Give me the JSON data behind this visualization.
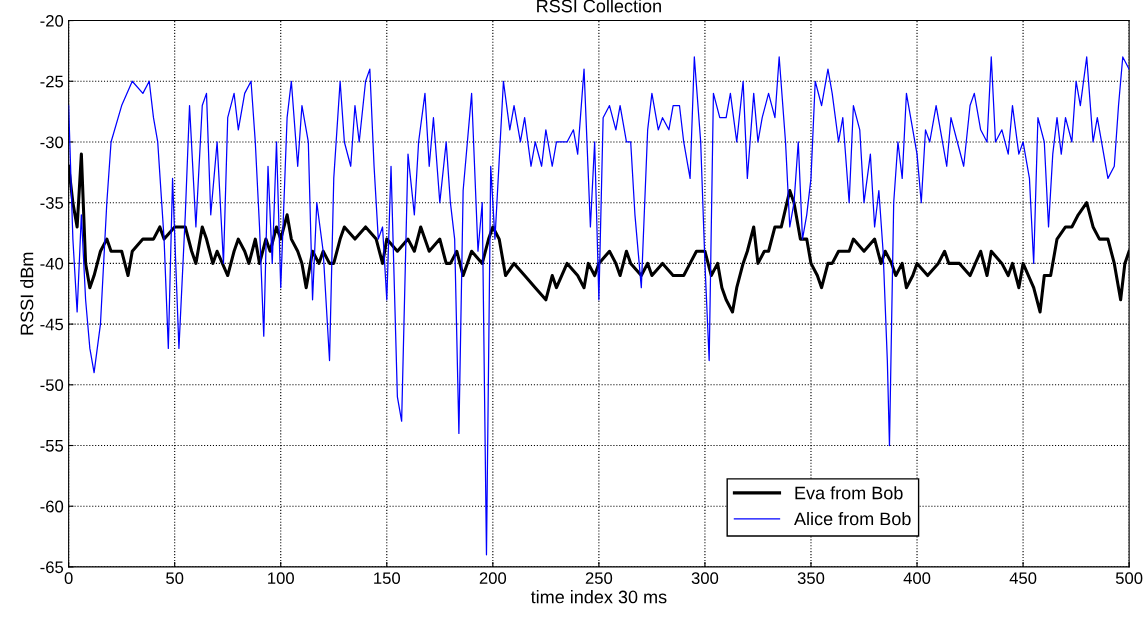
{
  "chart_data": {
    "type": "line",
    "title": "RSSI Collection",
    "xlabel": "time index 30 ms",
    "ylabel": "RSSI dBm",
    "xlim": [
      0,
      500
    ],
    "ylim": [
      -65,
      -20
    ],
    "xticks": [
      0,
      50,
      100,
      150,
      200,
      250,
      300,
      350,
      400,
      450,
      500
    ],
    "yticks": [
      -65,
      -60,
      -55,
      -50,
      -45,
      -40,
      -35,
      -30,
      -25,
      -20
    ],
    "grid": true,
    "legend": "bottom right",
    "line_style": "solid",
    "marker": "none",
    "series": [
      {
        "name": "Eva from Bob",
        "color": "#000000",
        "x": [
          0,
          2,
          4,
          6,
          8,
          10,
          12,
          15,
          18,
          20,
          25,
          28,
          30,
          35,
          38,
          40,
          43,
          45,
          50,
          55,
          58,
          60,
          63,
          65,
          68,
          70,
          75,
          78,
          80,
          83,
          85,
          88,
          90,
          93,
          95,
          98,
          100,
          103,
          105,
          108,
          110,
          112,
          115,
          118,
          120,
          123,
          125,
          128,
          130,
          135,
          140,
          145,
          148,
          150,
          155,
          160,
          163,
          166,
          170,
          175,
          178,
          180,
          183,
          186,
          188,
          190,
          195,
          198,
          200,
          203,
          206,
          210,
          215,
          220,
          225,
          228,
          230,
          235,
          240,
          243,
          245,
          248,
          250,
          255,
          258,
          260,
          263,
          265,
          270,
          273,
          275,
          280,
          285,
          290,
          293,
          296,
          300,
          303,
          306,
          308,
          310,
          313,
          315,
          318,
          320,
          323,
          325,
          328,
          330,
          333,
          336,
          340,
          342,
          345,
          348,
          350,
          353,
          355,
          358,
          360,
          363,
          368,
          370,
          375,
          380,
          383,
          385,
          388,
          390,
          393,
          395,
          398,
          400,
          405,
          410,
          413,
          415,
          420,
          425,
          430,
          433,
          435,
          440,
          443,
          445,
          448,
          450,
          455,
          458,
          460,
          463,
          466,
          470,
          473,
          476,
          480,
          483,
          486,
          490,
          493,
          495,
          496,
          498,
          500
        ],
        "values": [
          -32,
          -35,
          -37,
          -31,
          -40,
          -42,
          -41,
          -39,
          -38,
          -39,
          -39,
          -41,
          -39,
          -38,
          -38,
          -38,
          -37,
          -38,
          -37,
          -37,
          -39,
          -40,
          -37,
          -38,
          -40,
          -39,
          -41,
          -39,
          -38,
          -39,
          -40,
          -38,
          -40,
          -38,
          -39,
          -37,
          -38,
          -36,
          -38,
          -39,
          -40,
          -42,
          -39,
          -40,
          -39,
          -40,
          -40,
          -38,
          -37,
          -38,
          -37,
          -38,
          -40,
          -38,
          -39,
          -38,
          -39,
          -37,
          -39,
          -38,
          -40,
          -40,
          -39,
          -41,
          -40,
          -39,
          -40,
          -38,
          -37,
          -38,
          -41,
          -40,
          -41,
          -42,
          -43,
          -41,
          -42,
          -40,
          -41,
          -42,
          -40,
          -41,
          -40,
          -39,
          -40,
          -41,
          -39,
          -40,
          -41,
          -40,
          -41,
          -40,
          -41,
          -41,
          -40,
          -39,
          -39,
          -41,
          -40,
          -42,
          -43,
          -44,
          -42,
          -40,
          -39,
          -37,
          -40,
          -39,
          -39,
          -37,
          -37,
          -34,
          -35,
          -38,
          -38,
          -40,
          -41,
          -42,
          -40,
          -40,
          -39,
          -39,
          -38,
          -39,
          -38,
          -40,
          -39,
          -40,
          -41,
          -40,
          -42,
          -41,
          -40,
          -41,
          -40,
          -39,
          -40,
          -40,
          -41,
          -39,
          -41,
          -39,
          -40,
          -41,
          -40,
          -42,
          -40,
          -42,
          -44,
          -41,
          -41,
          -38,
          -37,
          -37,
          -36,
          -35,
          -37,
          -38,
          -38,
          -40,
          -42,
          -43,
          -40,
          -39
        ]
      },
      {
        "name": "Alice from Bob",
        "color": "#0000ff",
        "x": [
          0,
          2,
          4,
          6,
          8,
          10,
          12,
          15,
          18,
          20,
          25,
          30,
          35,
          38,
          40,
          42,
          45,
          47,
          49,
          52,
          55,
          57,
          60,
          63,
          65,
          67,
          70,
          73,
          75,
          78,
          80,
          83,
          86,
          88,
          90,
          92,
          94,
          96,
          98,
          100,
          103,
          105,
          108,
          110,
          113,
          115,
          117,
          120,
          123,
          125,
          128,
          130,
          133,
          135,
          137,
          140,
          142,
          144,
          146,
          148,
          150,
          152,
          155,
          157,
          160,
          163,
          165,
          168,
          170,
          172,
          175,
          178,
          180,
          182,
          184,
          186,
          188,
          190,
          193,
          195,
          197,
          199,
          201,
          205,
          208,
          210,
          213,
          215,
          218,
          220,
          223,
          225,
          228,
          230,
          235,
          238,
          240,
          243,
          246,
          248,
          250,
          252,
          255,
          258,
          260,
          263,
          265,
          267,
          270,
          273,
          275,
          278,
          280,
          283,
          285,
          288,
          290,
          293,
          295,
          298,
          300,
          302,
          304,
          307,
          310,
          312,
          315,
          318,
          320,
          323,
          325,
          327,
          330,
          333,
          335,
          338,
          340,
          342,
          344,
          346,
          348,
          350,
          352,
          355,
          358,
          360,
          363,
          365,
          368,
          370,
          373,
          375,
          378,
          380,
          382,
          384,
          386,
          387,
          389,
          391,
          393,
          395,
          397,
          400,
          402,
          404,
          406,
          409,
          412,
          414,
          416,
          419,
          422,
          425,
          427,
          430,
          433,
          435,
          437,
          440,
          443,
          445,
          448,
          450,
          453,
          455,
          457,
          460,
          462,
          464,
          466,
          468,
          470,
          473,
          475,
          477,
          480,
          483,
          485,
          487,
          490,
          493,
          495,
          497,
          500
        ],
        "values": [
          -27,
          -38,
          -44,
          -36,
          -43,
          -47,
          -49,
          -45,
          -35,
          -30,
          -27,
          -25,
          -26,
          -25,
          -28,
          -30,
          -38,
          -47,
          -33,
          -47,
          -36,
          -27,
          -37,
          -27,
          -26,
          -36,
          -30,
          -40,
          -28,
          -26,
          -29,
          -26,
          -25,
          -30,
          -37,
          -46,
          -32,
          -40,
          -30,
          -42,
          -28,
          -25,
          -32,
          -27,
          -30,
          -43,
          -35,
          -39,
          -48,
          -33,
          -25,
          -30,
          -32,
          -27,
          -30,
          -25,
          -24,
          -32,
          -38,
          -37,
          -43,
          -32,
          -51,
          -53,
          -31,
          -36,
          -30,
          -26,
          -32,
          -28,
          -35,
          -30,
          -35,
          -38,
          -54,
          -34,
          -30,
          -26,
          -39,
          -35,
          -64,
          -32,
          -38,
          -25,
          -29,
          -27,
          -30,
          -28,
          -32,
          -30,
          -32,
          -29,
          -32,
          -30,
          -30,
          -29,
          -31,
          -24,
          -37,
          -30,
          -43,
          -28,
          -27,
          -29,
          -27,
          -30,
          -30,
          -36,
          -42,
          -29,
          -26,
          -29,
          -28,
          -29,
          -27,
          -27,
          -30,
          -33,
          -23,
          -30,
          -40,
          -48,
          -26,
          -28,
          -28,
          -26,
          -30,
          -25,
          -33,
          -26,
          -30,
          -28,
          -26,
          -28,
          -23,
          -30,
          -37,
          -35,
          -30,
          -38,
          -36,
          -33,
          -25,
          -27,
          -24,
          -26,
          -30,
          -28,
          -35,
          -27,
          -29,
          -35,
          -31,
          -37,
          -34,
          -39,
          -48,
          -55,
          -35,
          -30,
          -33,
          -26,
          -28,
          -31,
          -35,
          -29,
          -30,
          -27,
          -30,
          -32,
          -28,
          -30,
          -32,
          -27,
          -26,
          -29,
          -30,
          -23,
          -30,
          -29,
          -31,
          -27,
          -31,
          -30,
          -33,
          -40,
          -28,
          -30,
          -37,
          -31,
          -28,
          -31,
          -28,
          -30,
          -25,
          -27,
          -23,
          -30,
          -28,
          -30,
          -33,
          -32,
          -27,
          -23,
          -24
        ]
      }
    ]
  }
}
